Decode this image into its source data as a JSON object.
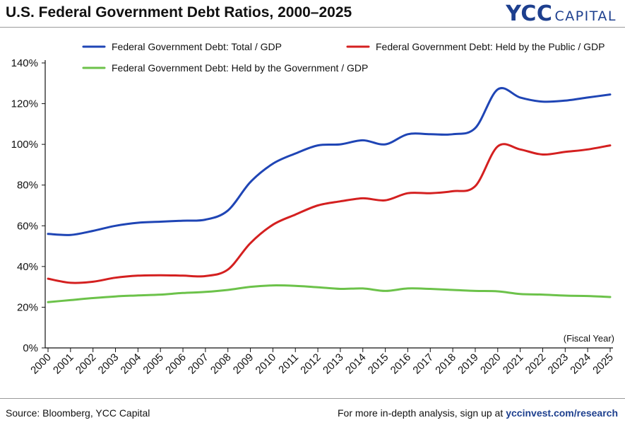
{
  "header": {
    "title": "U.S. Federal Government Debt Ratios, 2000–2025",
    "brand_mark": "YCC",
    "brand_sub": "CAPITAL"
  },
  "footer": {
    "source": "Source: Bloomberg, YCC Capital",
    "cta_text": "For more in-depth analysis, sign up at",
    "cta_link": "yccinvest.com/research"
  },
  "colors": {
    "total": "#1f45b5",
    "public": "#d42020",
    "government": "#6cc24a",
    "brand": "#1d3f8e"
  },
  "chart_data": {
    "type": "line",
    "title": "U.S. Federal Government Debt Ratios, 2000–2025",
    "xlabel": "",
    "ylabel": "",
    "x_note": "(Fiscal Year)",
    "ylim": [
      0,
      140
    ],
    "yticks": [
      0,
      20,
      40,
      60,
      80,
      100,
      120,
      140
    ],
    "ytick_labels": [
      "0%",
      "20%",
      "40%",
      "60%",
      "80%",
      "100%",
      "120%",
      "140%"
    ],
    "grid": false,
    "legend_position": "top",
    "x": [
      "2000",
      "2001",
      "2002",
      "2003",
      "2004",
      "2005",
      "2006",
      "2007",
      "2008",
      "2009",
      "2010",
      "2011",
      "2012",
      "2013",
      "2014",
      "2015",
      "2016",
      "2017",
      "2018",
      "2019",
      "2020",
      "2021",
      "2022",
      "2023",
      "2024",
      "2025"
    ],
    "series": [
      {
        "name": "Federal Government Debt: Total / GDP",
        "color": "#1f45b5",
        "values": [
          56,
          55.5,
          57.5,
          60,
          61.5,
          62,
          62.5,
          63,
          67.5,
          81.5,
          90.5,
          95.5,
          99.5,
          100,
          102,
          100,
          105,
          105,
          105,
          108,
          127,
          123,
          121,
          121.5,
          123,
          124.5
        ]
      },
      {
        "name": "Federal Government Debt: Held by the Public / GDP",
        "color": "#d42020",
        "values": [
          34,
          32,
          32.5,
          34.5,
          35.5,
          35.7,
          35.5,
          35.3,
          38.5,
          51.5,
          60.5,
          65.5,
          70,
          72,
          73.5,
          72.5,
          76,
          76,
          77,
          79.5,
          99,
          97.5,
          95,
          96.3,
          97.5,
          99.5
        ]
      },
      {
        "name": "Federal Government Debt: Held by the Government / GDP",
        "color": "#6cc24a",
        "values": [
          22.5,
          23.5,
          24.5,
          25.3,
          25.8,
          26.2,
          27,
          27.5,
          28.5,
          30,
          30.7,
          30.5,
          29.8,
          29,
          29.2,
          28,
          29.2,
          29,
          28.5,
          28,
          27.8,
          26.5,
          26.2,
          25.7,
          25.5,
          25
        ]
      }
    ]
  }
}
